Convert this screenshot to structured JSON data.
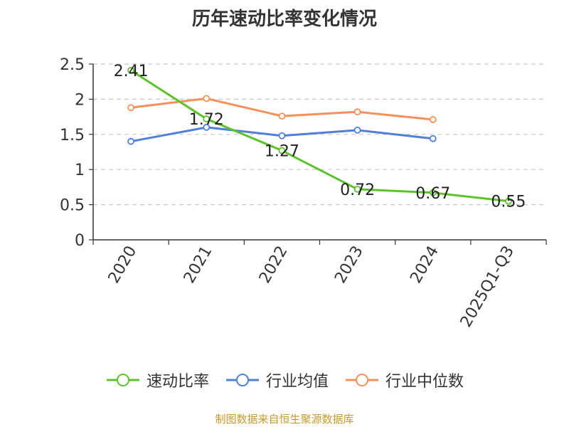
{
  "chart_data": {
    "type": "line",
    "title": "历年速动比率变化情况",
    "categories": [
      "2020",
      "2021",
      "2022",
      "2023",
      "2024",
      "2025Q1-Q3"
    ],
    "ylim": [
      0,
      2.5
    ],
    "yticks": [
      "0",
      "0.5",
      "1",
      "1.5",
      "2",
      "2.5"
    ],
    "grid": true,
    "legend_position": "bottom",
    "series": [
      {
        "name": "速动比率",
        "color": "#5cc32b",
        "values": [
          2.41,
          1.72,
          1.27,
          0.72,
          0.67,
          0.55
        ],
        "labels": [
          "2.41",
          "1.72",
          "1.27",
          "0.72",
          "0.67",
          "0.55"
        ]
      },
      {
        "name": "行业均值",
        "color": "#4f7fd8",
        "values": [
          1.4,
          1.6,
          1.48,
          1.56,
          1.44,
          null
        ]
      },
      {
        "name": "行业中位数",
        "color": "#f5905a",
        "values": [
          1.88,
          2.01,
          1.76,
          1.82,
          1.71,
          null
        ]
      }
    ]
  },
  "footer": {
    "source": "制图数据来自恒生聚源数据库"
  }
}
